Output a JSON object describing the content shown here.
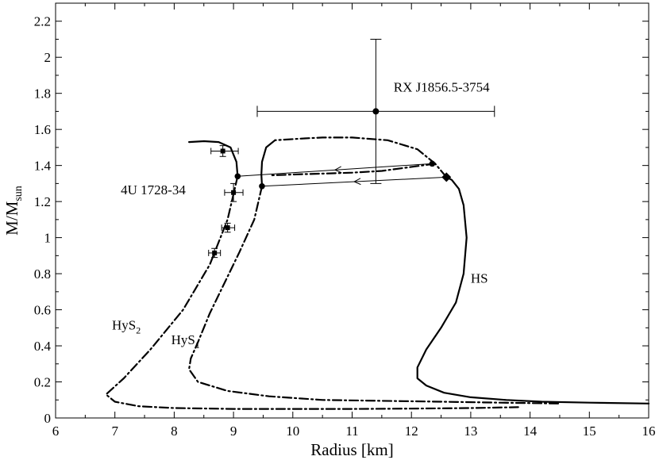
{
  "chart_data": {
    "type": "line",
    "xlabel": "Radius [km]",
    "ylabel": {
      "main": "M/M",
      "sub": "sun"
    },
    "xlim": [
      6,
      16
    ],
    "ylim": [
      0,
      2.3
    ],
    "xticks": [
      "6",
      "7",
      "8",
      "9",
      "10",
      "11",
      "12",
      "13",
      "14",
      "15",
      "16"
    ],
    "yticks": [
      "0",
      "0.2",
      "0.4",
      "0.6",
      "0.8",
      "1",
      "1.2",
      "1.4",
      "1.6",
      "1.8",
      "2",
      "2.2"
    ],
    "grid": false,
    "legend": "none",
    "series": [
      {
        "name": "HS",
        "style": "solid",
        "points": [
          [
            12.59,
            1.335
          ],
          [
            12.68,
            1.32
          ],
          [
            12.8,
            1.27
          ],
          [
            12.88,
            1.18
          ],
          [
            12.93,
            1.0
          ],
          [
            12.88,
            0.8
          ],
          [
            12.75,
            0.64
          ],
          [
            12.5,
            0.5
          ],
          [
            12.25,
            0.38
          ],
          [
            12.1,
            0.28
          ],
          [
            12.1,
            0.22
          ],
          [
            12.25,
            0.18
          ],
          [
            12.55,
            0.14
          ],
          [
            13.0,
            0.115
          ],
          [
            13.6,
            0.1
          ],
          [
            14.2,
            0.09
          ],
          [
            15.0,
            0.085
          ],
          [
            16.0,
            0.08
          ]
        ]
      },
      {
        "name": "HyS1",
        "style": "dashdot",
        "points": [
          [
            12.59,
            1.335
          ],
          [
            12.4,
            1.41
          ],
          [
            12.1,
            1.49
          ],
          [
            11.6,
            1.54
          ],
          [
            11.0,
            1.555
          ],
          [
            10.5,
            1.555
          ],
          [
            10.2,
            1.55
          ],
          [
            9.7,
            1.54
          ]
        ]
      },
      {
        "name": "HyS1",
        "style": "solid",
        "points": [
          [
            9.7,
            1.54
          ],
          [
            9.55,
            1.5
          ],
          [
            9.48,
            1.42
          ],
          [
            9.47,
            1.35
          ],
          [
            9.48,
            1.285
          ]
        ]
      },
      {
        "name": "HyS1",
        "style": "dashdot",
        "points": [
          [
            9.48,
            1.285
          ],
          [
            9.35,
            1.1
          ],
          [
            9.1,
            0.92
          ],
          [
            8.85,
            0.75
          ],
          [
            8.6,
            0.58
          ],
          [
            8.4,
            0.42
          ],
          [
            8.28,
            0.33
          ],
          [
            8.25,
            0.27
          ],
          [
            8.4,
            0.2
          ],
          [
            8.9,
            0.15
          ],
          [
            9.6,
            0.12
          ],
          [
            10.5,
            0.1
          ],
          [
            11.5,
            0.095
          ],
          [
            12.5,
            0.09
          ],
          [
            13.5,
            0.085
          ],
          [
            14.5,
            0.08
          ]
        ]
      },
      {
        "name": "HyS2",
        "style": "dashdot",
        "points": [
          [
            12.4,
            1.41
          ],
          [
            11.5,
            1.37
          ],
          [
            11.0,
            1.36
          ],
          [
            10.5,
            1.355
          ],
          [
            10.0,
            1.35
          ],
          [
            9.6,
            1.345
          ]
        ]
      },
      {
        "name": "HyS2",
        "style": "solid",
        "points": [
          [
            9.07,
            1.34
          ],
          [
            9.05,
            1.42
          ],
          [
            8.95,
            1.5
          ],
          [
            8.75,
            1.53
          ],
          [
            8.5,
            1.535
          ],
          [
            8.25,
            1.53
          ]
        ]
      },
      {
        "name": "HyS2",
        "style": "dashdot",
        "points": [
          [
            9.07,
            1.34
          ],
          [
            8.9,
            1.1
          ],
          [
            8.6,
            0.85
          ],
          [
            8.15,
            0.6
          ],
          [
            7.6,
            0.38
          ],
          [
            7.15,
            0.22
          ],
          [
            6.85,
            0.13
          ],
          [
            7.0,
            0.09
          ],
          [
            7.4,
            0.065
          ],
          [
            8.0,
            0.055
          ],
          [
            9.0,
            0.05
          ],
          [
            10.0,
            0.05
          ],
          [
            11.0,
            0.05
          ],
          [
            12.0,
            0.052
          ],
          [
            13.0,
            0.055
          ],
          [
            13.8,
            0.06
          ]
        ]
      }
    ],
    "transition_arrows": [
      {
        "from": [
          12.35,
          1.41
        ],
        "to": [
          9.07,
          1.34
        ]
      },
      {
        "from": [
          12.59,
          1.335
        ],
        "to": [
          9.48,
          1.285
        ]
      }
    ],
    "markers": [
      {
        "shape": "diamond",
        "x": 12.59,
        "y": 1.335
      },
      {
        "shape": "dot",
        "x": 12.35,
        "y": 1.41
      },
      {
        "shape": "dot",
        "x": 9.07,
        "y": 1.34
      },
      {
        "shape": "dot",
        "x": 9.48,
        "y": 1.285
      }
    ],
    "errorbars": [
      {
        "x": 11.4,
        "y": 1.7,
        "xerr": [
          9.4,
          13.4
        ],
        "yerr": [
          1.3,
          2.1
        ],
        "marker": "circle"
      },
      {
        "x": 8.82,
        "y": 1.48,
        "xerr": [
          8.62,
          9.08
        ],
        "yerr": [
          1.45,
          1.51
        ],
        "marker": "square"
      },
      {
        "x": 9.0,
        "y": 1.25,
        "xerr": [
          8.85,
          9.16
        ],
        "yerr": [
          1.2,
          1.3
        ],
        "marker": "square"
      },
      {
        "x": 8.9,
        "y": 1.055,
        "xerr": [
          8.8,
          9.02
        ],
        "yerr": [
          1.03,
          1.08
        ],
        "marker": "square"
      },
      {
        "x": 8.68,
        "y": 0.915,
        "xerr": [
          8.58,
          8.78
        ],
        "yerr": [
          0.89,
          0.94
        ],
        "marker": "square"
      }
    ],
    "annotations": [
      {
        "id": "rxj",
        "text": "RX J1856.5-3754",
        "sub": "",
        "x": 11.7,
        "y": 1.81
      },
      {
        "id": "4u",
        "text": "4U 1728-34",
        "sub": "",
        "x": 7.1,
        "y": 1.24
      },
      {
        "id": "hs",
        "text": "HS",
        "sub": "",
        "x": 13.0,
        "y": 0.75
      },
      {
        "id": "hys2",
        "text": "HyS",
        "sub": "2",
        "x": 6.95,
        "y": 0.49
      },
      {
        "id": "hys1",
        "text": "HyS",
        "sub": "1",
        "x": 7.95,
        "y": 0.41
      }
    ]
  }
}
